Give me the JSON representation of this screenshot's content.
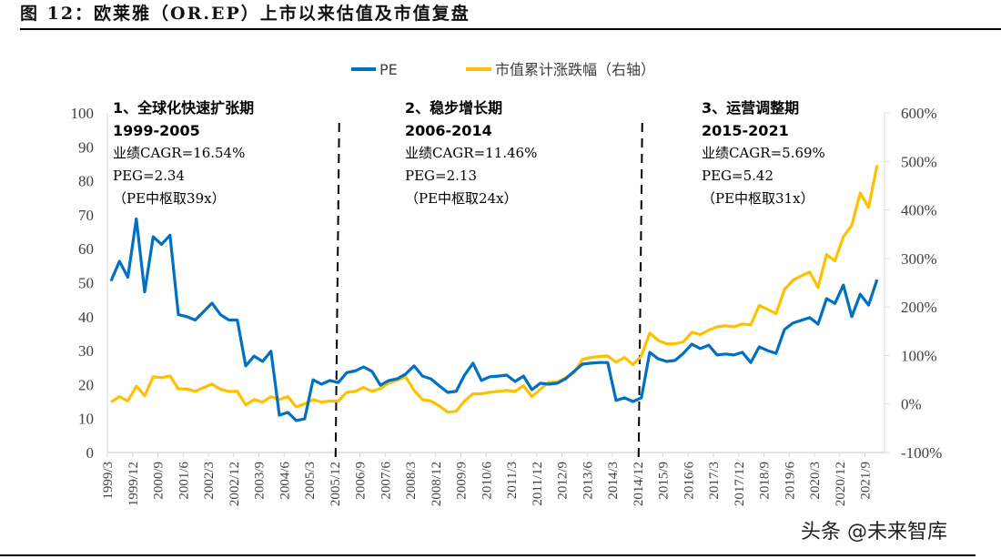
{
  "figure": {
    "title": "图 12：欧莱雅（OR.EP）上市以来估值及市值复盘",
    "watermark": "头条 @未来智库"
  },
  "chart_data": {
    "type": "line",
    "title": "图 12：欧莱雅（OR.EP）上市以来估值及市值复盘",
    "xlabel": "",
    "ylabel_left": "PE",
    "ylabel_right": "市值累计涨跌幅（右轴）",
    "legend_position": "top-center",
    "grid": false,
    "y_left": {
      "range": [
        0,
        100
      ],
      "ticks": [
        "0",
        "10",
        "20",
        "30",
        "40",
        "50",
        "60",
        "70",
        "80",
        "90",
        "100"
      ]
    },
    "y_right": {
      "range": [
        -100,
        600
      ],
      "ticks": [
        "-100%",
        "0%",
        "100%",
        "200%",
        "300%",
        "400%",
        "500%",
        "600%"
      ]
    },
    "x_tick_labels": [
      "1999/3",
      "1999/12",
      "2000/9",
      "2001/6",
      "2002/3",
      "2002/12",
      "2003/9",
      "2004/6",
      "2005/3",
      "2005/12",
      "2006/9",
      "2007/6",
      "2008/3",
      "2008/12",
      "2009/9",
      "2010/6",
      "2011/3",
      "2011/12",
      "2012/9",
      "2013/6",
      "2014/3",
      "2014/12",
      "2015/9",
      "2016/6",
      "2017/3",
      "2017/12",
      "2018/9",
      "2019/6",
      "2020/3",
      "2020/12",
      "2021/9"
    ],
    "x_tick_every_n_points": 3,
    "series": [
      {
        "name": "PE",
        "axis": "left",
        "color": "#0070C0",
        "values": [
          50.5,
          56.3,
          51.6,
          68.8,
          47.3,
          63.5,
          61.3,
          64.0,
          40.6,
          40.0,
          39.0,
          41.5,
          44.0,
          40.6,
          39.0,
          39.0,
          25.5,
          28.4,
          26.8,
          29.8,
          11.0,
          11.8,
          9.4,
          9.9,
          21.4,
          20.1,
          21.2,
          20.6,
          23.5,
          24.0,
          25.2,
          23.9,
          19.8,
          21.2,
          21.7,
          23.1,
          25.5,
          22.5,
          21.7,
          19.6,
          17.7,
          18.0,
          22.8,
          26.3,
          21.2,
          22.3,
          22.5,
          22.8,
          20.9,
          22.5,
          18.5,
          20.4,
          20.1,
          20.4,
          21.7,
          23.9,
          26.0,
          26.3,
          26.5,
          26.5,
          15.3,
          16.1,
          15.0,
          16.1,
          29.5,
          27.6,
          26.8,
          27.1,
          29.2,
          31.9,
          30.6,
          31.6,
          28.7,
          29.0,
          28.7,
          29.5,
          26.5,
          31.1,
          30.0,
          29.2,
          36.2,
          38.1,
          38.9,
          39.7,
          37.8,
          45.3,
          43.9,
          49.3,
          40.0,
          46.6,
          43.4,
          50.9
        ]
      },
      {
        "name": "市值累计涨跌幅（右轴）",
        "axis": "right",
        "color": "#FFC000",
        "values": [
          4,
          15,
          6,
          37,
          17,
          56,
          54,
          58,
          31,
          31,
          26,
          34,
          41,
          30,
          26,
          26,
          -2,
          9,
          4,
          15,
          9,
          15,
          -6,
          0,
          9,
          4,
          6,
          6,
          24,
          26,
          34,
          26,
          32,
          43,
          49,
          56,
          28,
          9,
          6,
          -4,
          -17,
          -15,
          6,
          21,
          21,
          24,
          26,
          28,
          26,
          38,
          15,
          30,
          45,
          45,
          54,
          64,
          92,
          96,
          98,
          99,
          86,
          96,
          81,
          99,
          146,
          131,
          124,
          124,
          128,
          148,
          143,
          152,
          159,
          161,
          159,
          165,
          163,
          203,
          195,
          186,
          236,
          255,
          264,
          272,
          240,
          308,
          295,
          345,
          368,
          435,
          405,
          492
        ]
      }
    ],
    "period_dividers_after": [
      "2005/12",
      "2014/12"
    ],
    "annotations": [
      {
        "heading": "1、全球化快速扩张期",
        "years": "1999-2005",
        "cagr": "业绩CAGR=16.54%",
        "peg": "PEG=2.34",
        "pe_center": "（PE中枢取39x）"
      },
      {
        "heading": "2、稳步增长期",
        "years": "2006-2014",
        "cagr": "业绩CAGR=11.46%",
        "peg": "PEG=2.13",
        "pe_center": "（PE中枢取24x）"
      },
      {
        "heading": "3、运营调整期",
        "years": "2015-2021",
        "cagr": "业绩CAGR=5.69%",
        "peg": "PEG=5.42",
        "pe_center": "（PE中枢取31x）"
      }
    ]
  }
}
